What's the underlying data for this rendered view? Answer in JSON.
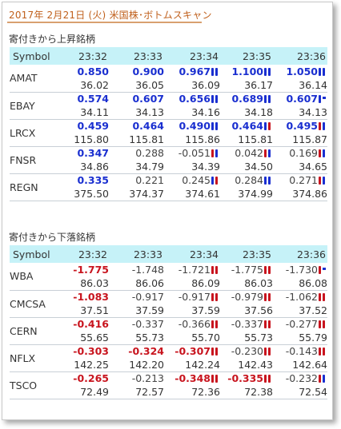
{
  "title": "2017年 2月21日 (火) 米国株･ボトムスキャン",
  "colors": {
    "up": "#1a2fd0",
    "down": "#c8141e",
    "header_bg": "#c6f2f8",
    "title": "#c0601c"
  },
  "sections": [
    {
      "title": "寄付きから上昇銘柄",
      "header": [
        "Symbol",
        "23:32",
        "23:33",
        "23:34",
        "23:35",
        "23:36"
      ],
      "rows": [
        {
          "symbol": "AMAT",
          "changes": [
            {
              "v": "0.850",
              "c": "up",
              "b": ""
            },
            {
              "v": "0.900",
              "c": "up",
              "b": ""
            },
            {
              "v": "0.967",
              "c": "up",
              "b": "bb"
            },
            {
              "v": "1.100",
              "c": "up",
              "b": "bb"
            },
            {
              "v": "1.050",
              "c": "up",
              "b": "bb"
            }
          ],
          "prices": [
            "36.02",
            "36.05",
            "36.09",
            "36.17",
            "36.14"
          ]
        },
        {
          "symbol": "EBAY",
          "changes": [
            {
              "v": "0.574",
              "c": "up",
              "b": ""
            },
            {
              "v": "0.607",
              "c": "up",
              "b": ""
            },
            {
              "v": "0.656",
              "c": "up",
              "b": "bb"
            },
            {
              "v": "0.689",
              "c": "up",
              "b": "bb"
            },
            {
              "v": "0.607",
              "c": "up",
              "b": "bt"
            }
          ],
          "prices": [
            "34.11",
            "34.13",
            "34.16",
            "34.18",
            "34.13"
          ]
        },
        {
          "symbol": "LRCX",
          "changes": [
            {
              "v": "0.459",
              "c": "up",
              "b": ""
            },
            {
              "v": "0.464",
              "c": "up",
              "b": ""
            },
            {
              "v": "0.490",
              "c": "up",
              "b": "bb"
            },
            {
              "v": "0.464",
              "c": "up",
              "b": "br"
            },
            {
              "v": "0.495",
              "c": "up",
              "b": "rb"
            }
          ],
          "prices": [
            "115.80",
            "115.81",
            "115.86",
            "115.81",
            "115.87"
          ]
        },
        {
          "symbol": "FNSR",
          "changes": [
            {
              "v": "0.347",
              "c": "up",
              "b": ""
            },
            {
              "v": "0.288",
              "c": "flat",
              "b": ""
            },
            {
              "v": "-0.051",
              "c": "flat",
              "b": "rb"
            },
            {
              "v": "0.042",
              "c": "flat",
              "b": "rb"
            },
            {
              "v": "0.169",
              "c": "flat",
              "b": "rb"
            }
          ],
          "prices": [
            "34.86",
            "34.79",
            "34.39",
            "34.50",
            "34.65"
          ]
        },
        {
          "symbol": "REGN",
          "changes": [
            {
              "v": "0.335",
              "c": "up",
              "b": ""
            },
            {
              "v": "0.221",
              "c": "flat",
              "b": ""
            },
            {
              "v": "0.245",
              "c": "flat",
              "b": "br"
            },
            {
              "v": "0.284",
              "c": "flat",
              "b": "bb"
            },
            {
              "v": "0.271",
              "c": "flat",
              "b": "rb"
            }
          ],
          "prices": [
            "375.50",
            "374.37",
            "374.61",
            "374.99",
            "374.86"
          ]
        }
      ]
    },
    {
      "title": "寄付きから下落銘柄",
      "header": [
        "Symbol",
        "23:32",
        "23:33",
        "23:34",
        "23:35",
        "23:36"
      ],
      "rows": [
        {
          "symbol": "WBA",
          "changes": [
            {
              "v": "-1.775",
              "c": "dn",
              "b": ""
            },
            {
              "v": "-1.748",
              "c": "flat",
              "b": ""
            },
            {
              "v": "-1.721",
              "c": "flat",
              "b": "rr"
            },
            {
              "v": "-1.775",
              "c": "flat",
              "b": "rr"
            },
            {
              "v": "-1.730",
              "c": "flat",
              "b": "rt"
            }
          ],
          "prices": [
            "86.03",
            "86.06",
            "86.09",
            "86.03",
            "86.08"
          ]
        },
        {
          "symbol": "CMCSA",
          "changes": [
            {
              "v": "-1.083",
              "c": "dn",
              "b": ""
            },
            {
              "v": "-0.917",
              "c": "flat",
              "b": ""
            },
            {
              "v": "-0.917",
              "c": "flat",
              "b": "rr"
            },
            {
              "v": "-0.979",
              "c": "flat",
              "b": "rr"
            },
            {
              "v": "-1.062",
              "c": "flat",
              "b": "rr"
            }
          ],
          "prices": [
            "37.51",
            "37.59",
            "37.59",
            "37.56",
            "37.52"
          ]
        },
        {
          "symbol": "CERN",
          "changes": [
            {
              "v": "-0.416",
              "c": "dn",
              "b": ""
            },
            {
              "v": "-0.337",
              "c": "flat",
              "b": ""
            },
            {
              "v": "-0.366",
              "c": "flat",
              "b": "rr"
            },
            {
              "v": "-0.337",
              "c": "flat",
              "b": "rr"
            },
            {
              "v": "-0.277",
              "c": "flat",
              "b": "rr"
            }
          ],
          "prices": [
            "55.65",
            "55.73",
            "55.70",
            "55.73",
            "55.79"
          ]
        },
        {
          "symbol": "NFLX",
          "changes": [
            {
              "v": "-0.303",
              "c": "dn",
              "b": ""
            },
            {
              "v": "-0.324",
              "c": "dn",
              "b": ""
            },
            {
              "v": "-0.307",
              "c": "dn",
              "b": "rr"
            },
            {
              "v": "-0.230",
              "c": "flat",
              "b": "rr"
            },
            {
              "v": "-0.143",
              "c": "flat",
              "b": "rr"
            }
          ],
          "prices": [
            "142.25",
            "142.20",
            "142.24",
            "142.43",
            "142.64"
          ]
        },
        {
          "symbol": "TSCO",
          "changes": [
            {
              "v": "-0.265",
              "c": "dn",
              "b": ""
            },
            {
              "v": "-0.213",
              "c": "flat",
              "b": ""
            },
            {
              "v": "-0.348",
              "c": "dn",
              "b": "rr"
            },
            {
              "v": "-0.335",
              "c": "dn",
              "b": "rr"
            },
            {
              "v": "-0.232",
              "c": "flat",
              "b": "rb"
            }
          ],
          "prices": [
            "72.49",
            "72.57",
            "72.36",
            "72.38",
            "72.54"
          ]
        }
      ]
    }
  ]
}
